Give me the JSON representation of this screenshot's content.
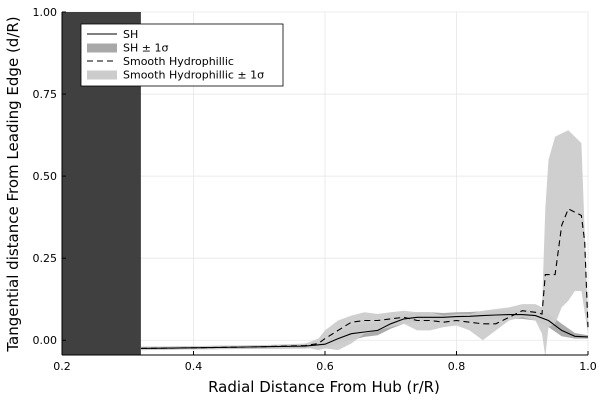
{
  "chart_data": {
    "type": "line",
    "title": "",
    "xlabel": "Radial Distance From Hub (r/R)",
    "ylabel": "Tangential distance From Leading Edge (d/R)",
    "xlim": [
      0.2,
      1.0
    ],
    "ylim": [
      -0.045,
      1.0
    ],
    "xticks": [
      0.2,
      0.4,
      0.6,
      0.8,
      1.0
    ],
    "xtick_labels": [
      "0.2",
      "0.4",
      "0.6",
      "0.8",
      "1.0"
    ],
    "yticks": [
      0.0,
      0.25,
      0.5,
      0.75,
      1.0
    ],
    "ytick_labels": [
      "0.00",
      "0.25",
      "0.50",
      "0.75",
      "1.00"
    ],
    "grid": true,
    "legend_position": "top-left",
    "shaded_region": {
      "x": [
        0.2,
        0.32
      ],
      "color": "#404040"
    },
    "series": [
      {
        "name": "SH",
        "style": "solid",
        "color": "#000000",
        "x": [
          0.32,
          0.4,
          0.5,
          0.57,
          0.6,
          0.62,
          0.64,
          0.66,
          0.68,
          0.7,
          0.72,
          0.74,
          0.76,
          0.78,
          0.8,
          0.82,
          0.84,
          0.86,
          0.88,
          0.9,
          0.92,
          0.94,
          0.96,
          0.98,
          1.0
        ],
        "y": [
          -0.025,
          -0.023,
          -0.02,
          -0.018,
          -0.012,
          0.005,
          0.02,
          0.025,
          0.03,
          0.05,
          0.065,
          0.07,
          0.07,
          0.07,
          0.072,
          0.073,
          0.075,
          0.077,
          0.078,
          0.078,
          0.075,
          0.06,
          0.03,
          0.012,
          0.01
        ]
      },
      {
        "name": "SH ± 1σ",
        "style": "band",
        "color": "#a8a8a8",
        "x": [
          0.32,
          0.4,
          0.5,
          0.57,
          0.6,
          0.62,
          0.64,
          0.66,
          0.68,
          0.7,
          0.72,
          0.74,
          0.76,
          0.78,
          0.8,
          0.82,
          0.84,
          0.86,
          0.88,
          0.9,
          0.92,
          0.94,
          0.96,
          0.98,
          1.0
        ],
        "lower": [
          -0.03,
          -0.028,
          -0.026,
          -0.025,
          -0.022,
          -0.01,
          0.0,
          0.01,
          0.015,
          0.035,
          0.05,
          0.055,
          0.058,
          0.058,
          0.06,
          0.06,
          0.062,
          0.064,
          0.065,
          0.065,
          0.06,
          0.04,
          0.012,
          0.005,
          0.005
        ],
        "upper": [
          -0.02,
          -0.018,
          -0.015,
          -0.012,
          -0.005,
          0.02,
          0.045,
          0.05,
          0.05,
          0.065,
          0.08,
          0.085,
          0.085,
          0.083,
          0.085,
          0.086,
          0.088,
          0.09,
          0.092,
          0.092,
          0.09,
          0.08,
          0.05,
          0.022,
          0.015
        ]
      },
      {
        "name": "Smooth Hydrophillic",
        "style": "dashed",
        "color": "#000000",
        "x": [
          0.32,
          0.4,
          0.5,
          0.57,
          0.59,
          0.6,
          0.62,
          0.64,
          0.66,
          0.68,
          0.7,
          0.72,
          0.74,
          0.76,
          0.78,
          0.8,
          0.82,
          0.84,
          0.86,
          0.88,
          0.9,
          0.92,
          0.93,
          0.935,
          0.95,
          0.96,
          0.97,
          0.98,
          0.99,
          0.995,
          1.0
        ],
        "y": [
          -0.025,
          -0.023,
          -0.02,
          -0.016,
          -0.01,
          0.005,
          0.03,
          0.055,
          0.06,
          0.06,
          0.065,
          0.07,
          0.06,
          0.06,
          0.055,
          0.06,
          0.055,
          0.05,
          0.05,
          0.07,
          0.09,
          0.085,
          0.08,
          0.2,
          0.2,
          0.35,
          0.4,
          0.39,
          0.38,
          0.3,
          0.04
        ]
      },
      {
        "name": "Smooth Hydrophillic ± 1σ",
        "style": "band",
        "color": "#cccccc",
        "x": [
          0.32,
          0.4,
          0.5,
          0.57,
          0.59,
          0.6,
          0.62,
          0.64,
          0.66,
          0.68,
          0.7,
          0.72,
          0.74,
          0.76,
          0.78,
          0.8,
          0.82,
          0.84,
          0.86,
          0.88,
          0.9,
          0.92,
          0.93,
          0.935,
          0.94,
          0.95,
          0.96,
          0.97,
          0.98,
          0.99,
          1.0
        ],
        "lower": [
          -0.03,
          -0.028,
          -0.025,
          -0.022,
          -0.03,
          -0.025,
          -0.03,
          -0.01,
          0.02,
          0.03,
          0.04,
          0.05,
          0.03,
          0.03,
          0.04,
          0.045,
          0.03,
          0.0,
          0.03,
          0.06,
          0.07,
          0.06,
          0.02,
          -0.05,
          0.04,
          0.05,
          0.1,
          0.12,
          0.15,
          0.15,
          0.02
        ],
        "upper": [
          -0.02,
          -0.018,
          -0.015,
          -0.01,
          0.005,
          0.03,
          0.06,
          0.075,
          0.085,
          0.08,
          0.085,
          0.09,
          0.085,
          0.085,
          0.075,
          0.08,
          0.08,
          0.09,
          0.095,
          0.1,
          0.11,
          0.11,
          0.1,
          0.4,
          0.55,
          0.62,
          0.63,
          0.64,
          0.62,
          0.6,
          0.06
        ]
      }
    ]
  }
}
